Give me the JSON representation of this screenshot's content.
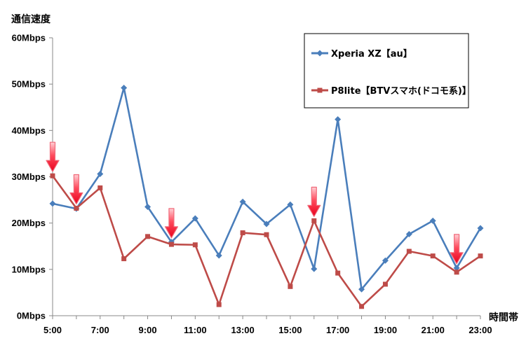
{
  "chart_data": {
    "type": "line",
    "ylabel": "通信速度",
    "xlabel": "時間帯",
    "ylim": [
      0,
      60
    ],
    "yticks": [
      "0Mbps",
      "10Mbps",
      "20Mbps",
      "30Mbps",
      "40Mbps",
      "50Mbps",
      "60Mbps"
    ],
    "ytick_values": [
      0,
      10,
      20,
      30,
      40,
      50,
      60
    ],
    "x": [
      5,
      6,
      7,
      8,
      9,
      10,
      11,
      12,
      13,
      14,
      15,
      16,
      17,
      18,
      19,
      20,
      21,
      22,
      23
    ],
    "xlim": [
      5,
      23
    ],
    "xtick_values": [
      5,
      7,
      9,
      11,
      13,
      15,
      17,
      19,
      21,
      23
    ],
    "xtick_labels": [
      "5:00",
      "7:00",
      "9:00",
      "11:00",
      "13:00",
      "15:00",
      "17:00",
      "19:00",
      "21:00",
      "23:00"
    ],
    "grid": false,
    "legend_position": "top-right",
    "series": [
      {
        "name": "Xperia XZ【au】",
        "color": "#4a7ebb",
        "marker": "diamond",
        "values": [
          24.2,
          23.1,
          30.6,
          49.2,
          23.5,
          15.9,
          21.0,
          13.0,
          24.6,
          19.8,
          24.0,
          10.1,
          42.4,
          5.7,
          11.9,
          17.6,
          20.5,
          10.3,
          18.9
        ]
      },
      {
        "name": "P8lite【BTVスマホ(ドコモ系)】",
        "color": "#be4b48",
        "marker": "square",
        "values": [
          30.2,
          23.2,
          27.6,
          12.3,
          17.1,
          15.4,
          15.3,
          2.4,
          17.9,
          17.5,
          6.3,
          20.5,
          9.2,
          2.0,
          6.8,
          13.9,
          12.9,
          9.4,
          12.9
        ]
      }
    ],
    "annotations": [
      {
        "type": "down-arrow",
        "x": 5,
        "series": 1
      },
      {
        "type": "down-arrow",
        "x": 6,
        "series": 1
      },
      {
        "type": "down-arrow",
        "x": 10,
        "series": 0
      },
      {
        "type": "down-arrow",
        "x": 16,
        "series": 1
      },
      {
        "type": "down-arrow",
        "x": 22,
        "series": 0
      }
    ]
  }
}
